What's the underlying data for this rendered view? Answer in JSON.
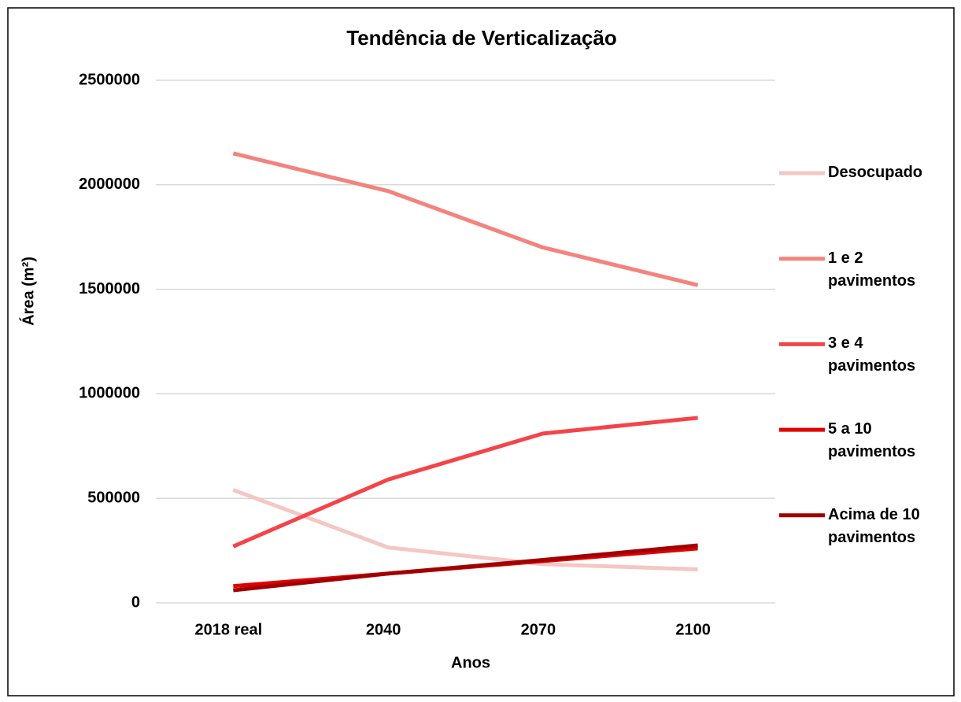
{
  "chart_data": {
    "type": "line",
    "title": "Tendência de Verticalização",
    "x_label": "Anos",
    "y_label": "Área (m²)",
    "categories": [
      "2018 real",
      "2040",
      "2070",
      "2100"
    ],
    "series": [
      {
        "name": "Desocupado",
        "color": "#f4c7c3",
        "values": [
          540000,
          265000,
          185000,
          160000
        ]
      },
      {
        "name": "1 e 2 pavimentos",
        "color": "#f4837d",
        "values": [
          2150000,
          1970000,
          1700000,
          1520000
        ]
      },
      {
        "name": "3 e 4 pavimentos",
        "color": "#f4444a",
        "values": [
          270000,
          590000,
          810000,
          885000
        ]
      },
      {
        "name": "5 a 10 pavimentos",
        "color": "#e00000",
        "values": [
          80000,
          140000,
          200000,
          260000
        ]
      },
      {
        "name": "Acima de 10 pavimentos",
        "color": "#a00000",
        "values": [
          60000,
          140000,
          205000,
          275000
        ]
      }
    ],
    "ylim": [
      0,
      2500000
    ],
    "yticks": [
      0,
      500000,
      1000000,
      1500000,
      2000000,
      2500000
    ],
    "grid": true,
    "legend": "right"
  }
}
